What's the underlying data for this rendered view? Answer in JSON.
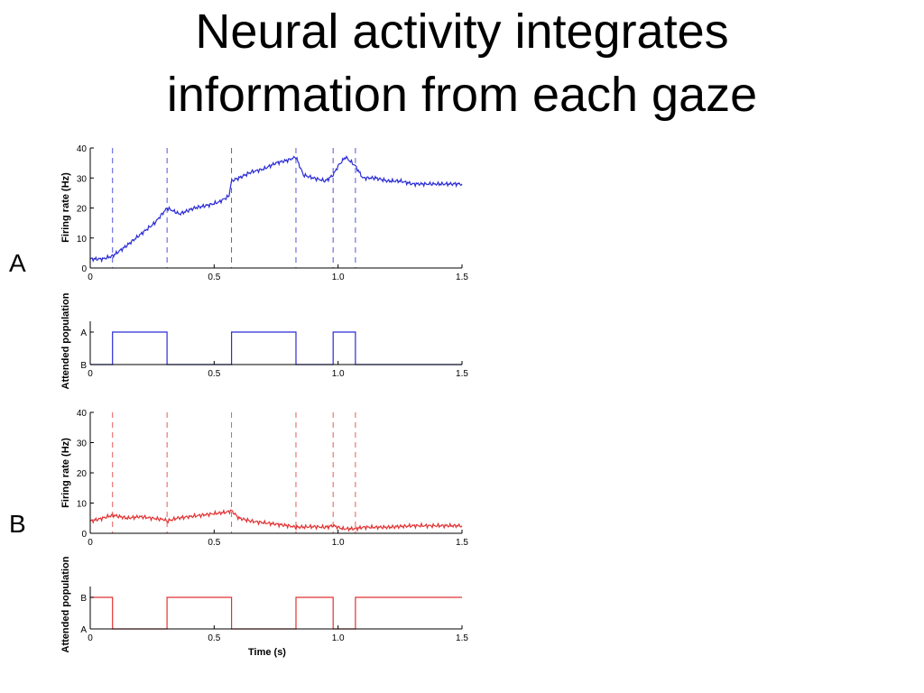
{
  "slide": {
    "title_line1": "Neural activity integrates",
    "title_line2": "information from each gaze",
    "panel_a": "A",
    "panel_b": "B"
  },
  "colors": {
    "panel_a": "#2b2bd6",
    "panel_b": "#e23232",
    "axis": "#000000"
  },
  "chart_data": [
    {
      "id": "a-firing",
      "type": "line",
      "ylabel": "Firing rate (Hz)",
      "xlabel": "",
      "xlim": [
        0,
        1.5
      ],
      "ylim": [
        0,
        40
      ],
      "xticks": [
        0,
        0.5,
        1.0,
        1.5
      ],
      "xtick_labels": [
        "0",
        "0.5",
        "1.0",
        "1.5"
      ],
      "yticks": [
        0,
        10,
        20,
        30,
        40
      ],
      "ytick_labels": [
        "0",
        "10",
        "20",
        "30",
        "40"
      ],
      "color_key": "panel_a",
      "gaze_switch_times": [
        0.09,
        0.31,
        0.57,
        0.83,
        0.98,
        1.07
      ],
      "series": [
        {
          "x": [
            0,
            0.05,
            0.09,
            0.14,
            0.2,
            0.26,
            0.31,
            0.36,
            0.42,
            0.48,
            0.52,
            0.56,
            0.57,
            0.6,
            0.65,
            0.7,
            0.75,
            0.8,
            0.83,
            0.86,
            0.9,
            0.95,
            0.98,
            1.0,
            1.03,
            1.07,
            1.1,
            1.15,
            1.2,
            1.25,
            1.3,
            1.35,
            1.4,
            1.45,
            1.5
          ],
          "y": [
            3,
            3,
            4,
            7,
            11,
            15,
            20,
            18,
            20,
            21,
            22,
            24,
            29,
            30,
            32,
            33,
            35,
            36,
            37,
            31,
            30,
            29,
            31,
            34,
            37,
            34,
            30,
            30,
            29,
            29,
            28,
            28,
            28,
            28,
            28
          ]
        }
      ]
    },
    {
      "id": "a-attended",
      "type": "line",
      "ylabel": "Attended population",
      "xlabel": "",
      "xlim": [
        0,
        1.5
      ],
      "xticks": [
        0,
        0.5,
        1.0,
        1.5
      ],
      "xtick_labels": [
        "0",
        "0.5",
        "1.0",
        "1.5"
      ],
      "ytick_labels": [
        "A",
        "B"
      ],
      "color_key": "panel_a",
      "series": [
        {
          "x": [
            0,
            0.09,
            0.09,
            0.31,
            0.31,
            0.57,
            0.57,
            0.83,
            0.83,
            0.98,
            0.98,
            1.07,
            1.07,
            1.5
          ],
          "y": [
            "B",
            "B",
            "A",
            "A",
            "B",
            "B",
            "A",
            "A",
            "B",
            "B",
            "A",
            "A",
            "B",
            "B"
          ]
        }
      ]
    },
    {
      "id": "b-firing",
      "type": "line",
      "ylabel": "Firing rate (Hz)",
      "xlabel": "",
      "xlim": [
        0,
        1.5
      ],
      "ylim": [
        0,
        40
      ],
      "xticks": [
        0,
        0.5,
        1.0,
        1.5
      ],
      "xtick_labels": [
        "0",
        "0.5",
        "1.0",
        "1.5"
      ],
      "yticks": [
        0,
        10,
        20,
        30,
        40
      ],
      "ytick_labels": [
        "0",
        "10",
        "20",
        "30",
        "40"
      ],
      "color_key": "panel_b",
      "gaze_switch_times": [
        0.09,
        0.31,
        0.57,
        0.83,
        0.98,
        1.07
      ],
      "series": [
        {
          "x": [
            0,
            0.05,
            0.09,
            0.15,
            0.2,
            0.25,
            0.3,
            0.31,
            0.35,
            0.4,
            0.45,
            0.5,
            0.55,
            0.57,
            0.6,
            0.65,
            0.7,
            0.75,
            0.8,
            0.83,
            0.9,
            0.95,
            0.98,
            1.02,
            1.07,
            1.1,
            1.2,
            1.3,
            1.4,
            1.5
          ],
          "y": [
            4,
            5,
            6,
            5,
            5.5,
            5,
            4.5,
            4,
            5,
            5.5,
            6,
            6.5,
            7,
            7.5,
            5,
            4,
            3.5,
            3,
            2.5,
            2,
            2.2,
            2,
            2.5,
            1.5,
            1.5,
            2,
            2,
            2.5,
            2.5,
            2.5
          ]
        }
      ]
    },
    {
      "id": "b-attended",
      "type": "line",
      "ylabel": "Attended population",
      "xlabel": "Time (s)",
      "xlim": [
        0,
        1.5
      ],
      "xticks": [
        0,
        0.5,
        1.0,
        1.5
      ],
      "xtick_labels": [
        "0",
        "0.5",
        "1.0",
        "1.5"
      ],
      "ytick_labels": [
        "B",
        "A"
      ],
      "color_key": "panel_b",
      "series": [
        {
          "x": [
            0,
            0.09,
            0.09,
            0.31,
            0.31,
            0.57,
            0.57,
            0.83,
            0.83,
            0.98,
            0.98,
            1.07,
            1.07,
            1.5
          ],
          "y": [
            "B",
            "B",
            "A",
            "A",
            "B",
            "B",
            "A",
            "A",
            "B",
            "B",
            "A",
            "A",
            "B",
            "B"
          ]
        }
      ]
    }
  ]
}
